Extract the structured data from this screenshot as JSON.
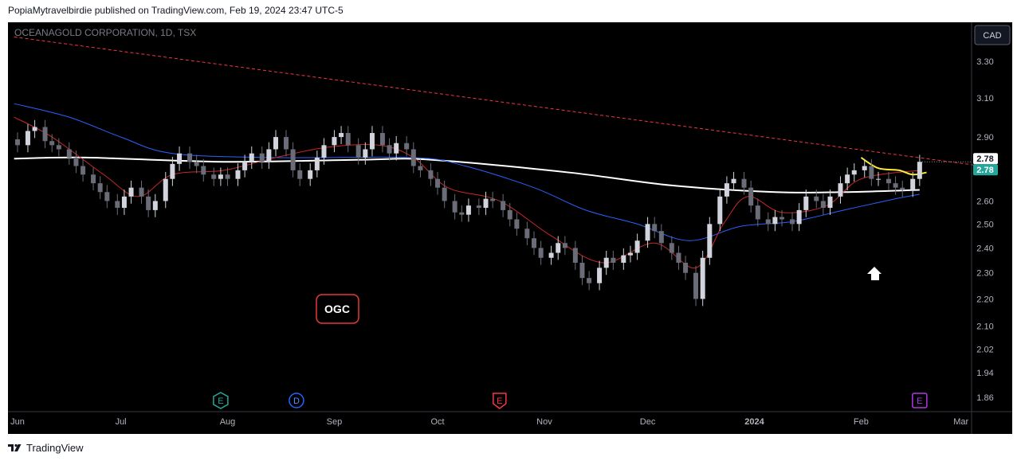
{
  "header": {
    "published": "PopiaMytravelbirdie published on TradingView.com, Feb 19, 2024 23:47 UTC-5"
  },
  "footer": {
    "brand": "TradingView"
  },
  "chart_data": {
    "type": "candlestick",
    "symbol_label": "OCEANAGOLD CORPORATION, 1D, TSX",
    "currency": "CAD",
    "annotation": "OGC",
    "last_price": "2.78",
    "last_price_marker": "2.78",
    "y_ticks": [
      "3.30",
      "3.10",
      "2.90",
      "2.78",
      "2.60",
      "2.50",
      "2.40",
      "2.30",
      "2.20",
      "2.10",
      "2.02",
      "1.94",
      "1.86"
    ],
    "y_tick_values": [
      3.3,
      3.1,
      2.9,
      2.6,
      2.5,
      2.4,
      2.3,
      2.2,
      2.1,
      2.02,
      1.94,
      1.86
    ],
    "y_scale": "log",
    "x_ticks": [
      {
        "label": "Jun",
        "day": 0
      },
      {
        "label": "Jul",
        "day": 30
      },
      {
        "label": "Aug",
        "day": 61
      },
      {
        "label": "Sep",
        "day": 92
      },
      {
        "label": "Oct",
        "day": 122
      },
      {
        "label": "Nov",
        "day": 153
      },
      {
        "label": "Dec",
        "day": 183
      },
      {
        "label": "2024",
        "day": 214
      },
      {
        "label": "Feb",
        "day": 245
      },
      {
        "label": "Mar",
        "day": 274
      }
    ],
    "events": [
      {
        "label": "E",
        "day": 59,
        "color": "#26a69a"
      },
      {
        "label": "D",
        "day": 81,
        "color": "#2962ff"
      },
      {
        "label": "E",
        "day": 140,
        "color": "#f23645"
      },
      {
        "label": "E",
        "day": 262,
        "color": "#b136e6"
      }
    ],
    "trendline": {
      "color": "#f23645",
      "style": "dashed",
      "from": {
        "day": -1,
        "price": 3.44
      },
      "to": {
        "day": 280,
        "price": 2.76
      }
    },
    "closes": [
      {
        "day": 0,
        "close": 2.86
      },
      {
        "day": 3,
        "close": 2.93
      },
      {
        "day": 5,
        "close": 2.95
      },
      {
        "day": 8,
        "close": 2.88
      },
      {
        "day": 10,
        "close": 2.86
      },
      {
        "day": 12,
        "close": 2.84
      },
      {
        "day": 15,
        "close": 2.8
      },
      {
        "day": 17,
        "close": 2.76
      },
      {
        "day": 19,
        "close": 2.72
      },
      {
        "day": 22,
        "close": 2.68
      },
      {
        "day": 24,
        "close": 2.64
      },
      {
        "day": 26,
        "close": 2.6
      },
      {
        "day": 29,
        "close": 2.57
      },
      {
        "day": 31,
        "close": 2.62
      },
      {
        "day": 33,
        "close": 2.66
      },
      {
        "day": 36,
        "close": 2.62
      },
      {
        "day": 38,
        "close": 2.56
      },
      {
        "day": 40,
        "close": 2.6
      },
      {
        "day": 43,
        "close": 2.7
      },
      {
        "day": 45,
        "close": 2.77
      },
      {
        "day": 47,
        "close": 2.82
      },
      {
        "day": 50,
        "close": 2.78
      },
      {
        "day": 52,
        "close": 2.76
      },
      {
        "day": 54,
        "close": 2.72
      },
      {
        "day": 57,
        "close": 2.7
      },
      {
        "day": 59,
        "close": 2.72
      },
      {
        "day": 61,
        "close": 2.7
      },
      {
        "day": 64,
        "close": 2.74
      },
      {
        "day": 66,
        "close": 2.78
      },
      {
        "day": 68,
        "close": 2.82
      },
      {
        "day": 71,
        "close": 2.78
      },
      {
        "day": 73,
        "close": 2.84
      },
      {
        "day": 75,
        "close": 2.9
      },
      {
        "day": 78,
        "close": 2.84
      },
      {
        "day": 80,
        "close": 2.74
      },
      {
        "day": 82,
        "close": 2.7
      },
      {
        "day": 85,
        "close": 2.74
      },
      {
        "day": 87,
        "close": 2.8
      },
      {
        "day": 89,
        "close": 2.86
      },
      {
        "day": 92,
        "close": 2.9
      },
      {
        "day": 94,
        "close": 2.92
      },
      {
        "day": 96,
        "close": 2.86
      },
      {
        "day": 99,
        "close": 2.8
      },
      {
        "day": 101,
        "close": 2.84
      },
      {
        "day": 103,
        "close": 2.92
      },
      {
        "day": 106,
        "close": 2.86
      },
      {
        "day": 108,
        "close": 2.82
      },
      {
        "day": 110,
        "close": 2.87
      },
      {
        "day": 113,
        "close": 2.84
      },
      {
        "day": 115,
        "close": 2.76
      },
      {
        "day": 117,
        "close": 2.74
      },
      {
        "day": 120,
        "close": 2.7
      },
      {
        "day": 122,
        "close": 2.66
      },
      {
        "day": 124,
        "close": 2.6
      },
      {
        "day": 127,
        "close": 2.55
      },
      {
        "day": 129,
        "close": 2.54
      },
      {
        "day": 131,
        "close": 2.58
      },
      {
        "day": 134,
        "close": 2.57
      },
      {
        "day": 136,
        "close": 2.61
      },
      {
        "day": 138,
        "close": 2.6
      },
      {
        "day": 141,
        "close": 2.56
      },
      {
        "day": 143,
        "close": 2.52
      },
      {
        "day": 145,
        "close": 2.48
      },
      {
        "day": 148,
        "close": 2.44
      },
      {
        "day": 150,
        "close": 2.4
      },
      {
        "day": 152,
        "close": 2.36
      },
      {
        "day": 155,
        "close": 2.38
      },
      {
        "day": 157,
        "close": 2.42
      },
      {
        "day": 159,
        "close": 2.4
      },
      {
        "day": 162,
        "close": 2.34
      },
      {
        "day": 164,
        "close": 2.28
      },
      {
        "day": 166,
        "close": 2.26
      },
      {
        "day": 169,
        "close": 2.32
      },
      {
        "day": 171,
        "close": 2.36
      },
      {
        "day": 173,
        "close": 2.34
      },
      {
        "day": 176,
        "close": 2.37
      },
      {
        "day": 178,
        "close": 2.38
      },
      {
        "day": 180,
        "close": 2.43
      },
      {
        "day": 183,
        "close": 2.5
      },
      {
        "day": 185,
        "close": 2.47
      },
      {
        "day": 187,
        "close": 2.42
      },
      {
        "day": 190,
        "close": 2.38
      },
      {
        "day": 192,
        "close": 2.34
      },
      {
        "day": 194,
        "close": 2.3
      },
      {
        "day": 197,
        "close": 2.2
      },
      {
        "day": 199,
        "close": 2.36
      },
      {
        "day": 201,
        "close": 2.5
      },
      {
        "day": 204,
        "close": 2.62
      },
      {
        "day": 206,
        "close": 2.68
      },
      {
        "day": 208,
        "close": 2.7
      },
      {
        "day": 211,
        "close": 2.66
      },
      {
        "day": 213,
        "close": 2.58
      },
      {
        "day": 215,
        "close": 2.52
      },
      {
        "day": 218,
        "close": 2.5
      },
      {
        "day": 220,
        "close": 2.53
      },
      {
        "day": 222,
        "close": 2.52
      },
      {
        "day": 225,
        "close": 2.5
      },
      {
        "day": 227,
        "close": 2.56
      },
      {
        "day": 229,
        "close": 2.62
      },
      {
        "day": 232,
        "close": 2.6
      },
      {
        "day": 234,
        "close": 2.57
      },
      {
        "day": 236,
        "close": 2.62
      },
      {
        "day": 239,
        "close": 2.68
      },
      {
        "day": 241,
        "close": 2.72
      },
      {
        "day": 243,
        "close": 2.74
      },
      {
        "day": 246,
        "close": 2.76
      },
      {
        "day": 248,
        "close": 2.7
      },
      {
        "day": 250,
        "close": 2.7
      },
      {
        "day": 253,
        "close": 2.68
      },
      {
        "day": 255,
        "close": 2.66
      },
      {
        "day": 257,
        "close": 2.65
      },
      {
        "day": 260,
        "close": 2.7
      },
      {
        "day": 262,
        "close": 2.78
      }
    ],
    "moving_averages": [
      {
        "color": "#ffffff",
        "points": [
          {
            "day": -1,
            "price": 2.795
          },
          {
            "day": 20,
            "price": 2.8
          },
          {
            "day": 60,
            "price": 2.78
          },
          {
            "day": 100,
            "price": 2.79
          },
          {
            "day": 120,
            "price": 2.79
          },
          {
            "day": 160,
            "price": 2.73
          },
          {
            "day": 190,
            "price": 2.67
          },
          {
            "day": 220,
            "price": 2.64
          },
          {
            "day": 240,
            "price": 2.64
          },
          {
            "day": 262,
            "price": 2.65
          }
        ]
      },
      {
        "color": "#2962ff",
        "points": [
          {
            "day": -1,
            "price": 3.07
          },
          {
            "day": 15,
            "price": 3.0
          },
          {
            "day": 30,
            "price": 2.9
          },
          {
            "day": 45,
            "price": 2.82
          },
          {
            "day": 75,
            "price": 2.8
          },
          {
            "day": 115,
            "price": 2.8
          },
          {
            "day": 130,
            "price": 2.76
          },
          {
            "day": 150,
            "price": 2.66
          },
          {
            "day": 165,
            "price": 2.56
          },
          {
            "day": 180,
            "price": 2.5
          },
          {
            "day": 195,
            "price": 2.43
          },
          {
            "day": 210,
            "price": 2.49
          },
          {
            "day": 225,
            "price": 2.51
          },
          {
            "day": 240,
            "price": 2.56
          },
          {
            "day": 255,
            "price": 2.61
          },
          {
            "day": 262,
            "price": 2.63
          }
        ]
      },
      {
        "color": "#c62828",
        "points": [
          {
            "day": -1,
            "price": 3.0
          },
          {
            "day": 10,
            "price": 2.9
          },
          {
            "day": 25,
            "price": 2.72
          },
          {
            "day": 35,
            "price": 2.62
          },
          {
            "day": 45,
            "price": 2.72
          },
          {
            "day": 60,
            "price": 2.74
          },
          {
            "day": 75,
            "price": 2.8
          },
          {
            "day": 90,
            "price": 2.85
          },
          {
            "day": 105,
            "price": 2.86
          },
          {
            "day": 115,
            "price": 2.8
          },
          {
            "day": 125,
            "price": 2.66
          },
          {
            "day": 140,
            "price": 2.6
          },
          {
            "day": 155,
            "price": 2.45
          },
          {
            "day": 170,
            "price": 2.34
          },
          {
            "day": 185,
            "price": 2.42
          },
          {
            "day": 197,
            "price": 2.32
          },
          {
            "day": 205,
            "price": 2.5
          },
          {
            "day": 212,
            "price": 2.62
          },
          {
            "day": 222,
            "price": 2.55
          },
          {
            "day": 235,
            "price": 2.58
          },
          {
            "day": 245,
            "price": 2.7
          },
          {
            "day": 262,
            "price": 2.74
          }
        ]
      },
      {
        "color": "#ffeb3b",
        "points": [
          {
            "day": 245,
            "price": 2.8
          },
          {
            "day": 250,
            "price": 2.75
          },
          {
            "day": 256,
            "price": 2.74
          },
          {
            "day": 260,
            "price": 2.72
          },
          {
            "day": 264,
            "price": 2.73
          }
        ]
      }
    ]
  }
}
